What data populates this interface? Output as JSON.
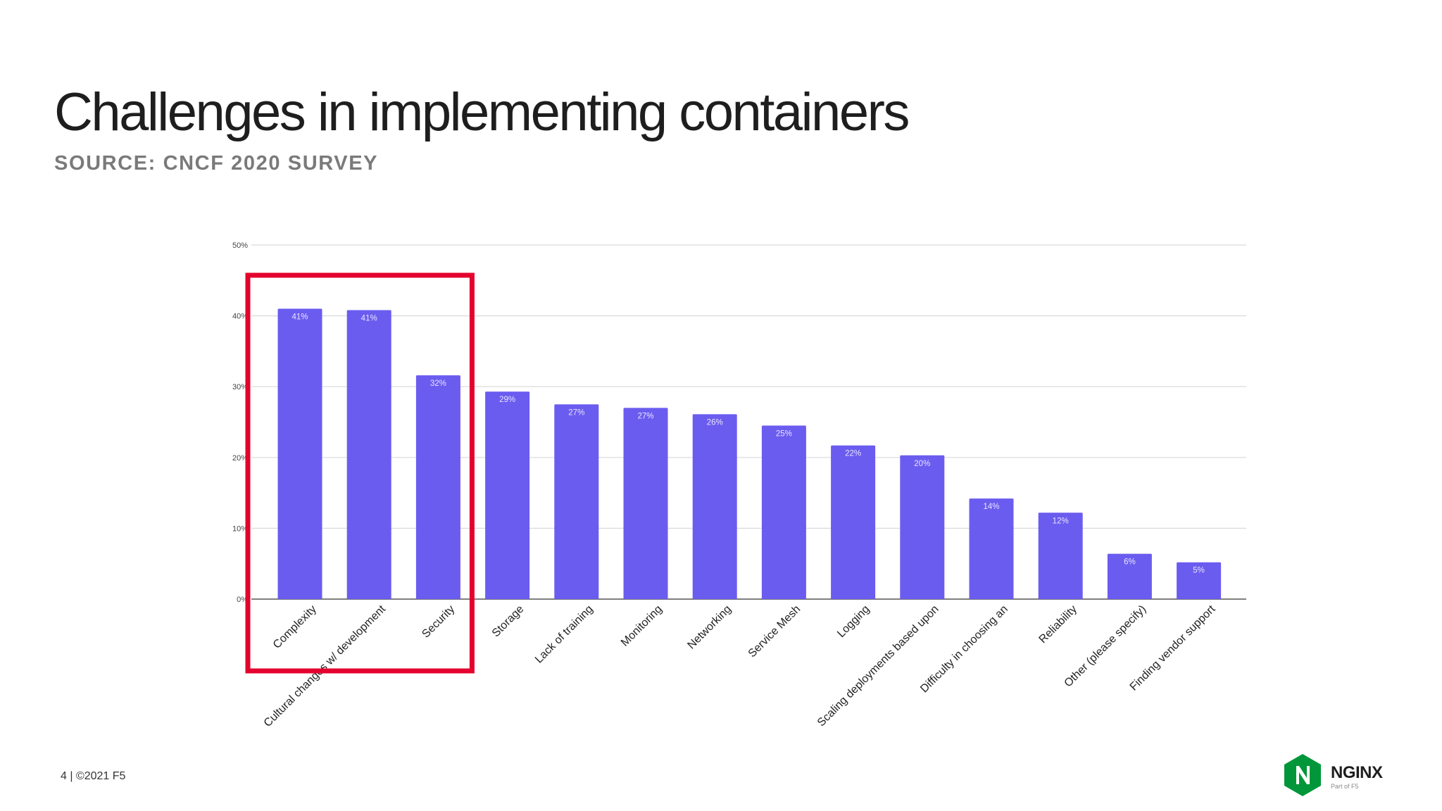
{
  "slide": {
    "title": "Challenges in implementing containers",
    "subtitle": "SOURCE: CNCF 2020 SURVEY",
    "footer": "4 | ©2021 F5",
    "logo_name": "NGINX",
    "logo_tagline": "Part of F5",
    "logo_icon": "nginx-hexagon-n-icon"
  },
  "colors": {
    "bar": "#6b5cf0",
    "highlight_box": "#e4032e",
    "brand_green": "#009639",
    "gridline": "#d9d9d9"
  },
  "chart_data": {
    "type": "bar",
    "categories": [
      "Complexity",
      "Cultural changes w/ development",
      "Security",
      "Storage",
      "Lack of training",
      "Monitoring",
      "Networking",
      "Service Mesh",
      "Logging",
      "Scaling deployments based upon",
      "Difficulty in choosing an",
      "Reliability",
      "Other (please specify)",
      "Finding vendor support"
    ],
    "values": [
      41,
      40.8,
      31.6,
      29.3,
      27.5,
      27,
      26.1,
      24.5,
      21.7,
      20.3,
      14.2,
      12.2,
      6.4,
      5.2
    ],
    "data_labels": [
      "41%",
      "41%",
      "32%",
      "29%",
      "27%",
      "27%",
      "26%",
      "25%",
      "22%",
      "20%",
      "14%",
      "12%",
      "6%",
      "5%"
    ],
    "y_ticks": [
      0,
      10,
      20,
      30,
      40,
      50
    ],
    "y_tick_labels": [
      "0%",
      "10%",
      "20%",
      "30%",
      "40%",
      "50%"
    ],
    "ylim": [
      0,
      50
    ],
    "xlabel": "",
    "ylabel": "",
    "grid": true,
    "highlighted_categories": [
      "Complexity",
      "Cultural changes w/ development",
      "Security"
    ]
  }
}
